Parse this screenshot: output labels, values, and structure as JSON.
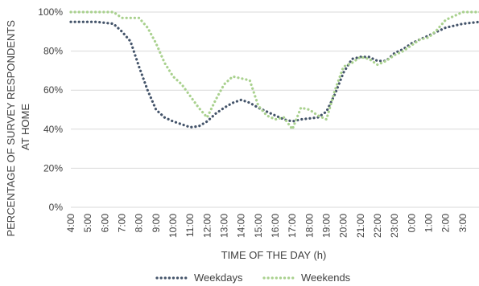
{
  "chart_data": {
    "type": "line",
    "xlabel": "TIME OF THE DAY (h)",
    "ylabel_lines": [
      "PERCENTAGE OF SURVEY RESPONDENTS",
      "AT HOME"
    ],
    "ylim": [
      0,
      100
    ],
    "yticks": [
      0,
      20,
      40,
      60,
      80,
      100
    ],
    "ytick_labels": [
      "0%",
      "20%",
      "40%",
      "60%",
      "80%",
      "100%"
    ],
    "xlim": [
      4,
      28
    ],
    "xticks": [
      4,
      5,
      6,
      7,
      8,
      9,
      10,
      11,
      12,
      13,
      14,
      15,
      16,
      17,
      18,
      19,
      20,
      21,
      22,
      23,
      24,
      25,
      26,
      27
    ],
    "xtick_labels": [
      "4:00",
      "5:00",
      "6:00",
      "7:00",
      "8:00",
      "9:00",
      "10:00",
      "11:00",
      "12:00",
      "13:00",
      "14:00",
      "15:00",
      "16:00",
      "17:00",
      "18:00",
      "19:00",
      "20:00",
      "21:00",
      "22:00",
      "23:00",
      "0:00",
      "1:00",
      "2:00",
      "3:00"
    ],
    "legend_position": "bottom",
    "grid": "horizontal",
    "series": [
      {
        "name": "Weekdays",
        "color": "#44546a",
        "x": [
          4,
          4.5,
          5,
          5.5,
          6,
          6.5,
          7,
          7.5,
          8,
          8.5,
          9,
          9.5,
          10,
          10.5,
          11,
          11.5,
          12,
          12.5,
          13,
          13.5,
          14,
          14.5,
          15,
          15.5,
          16,
          16.5,
          17,
          17.5,
          18,
          18.5,
          19,
          19.5,
          20,
          20.5,
          21,
          21.5,
          22,
          22.5,
          23,
          23.5,
          24,
          24.5,
          25,
          25.5,
          26,
          26.5,
          27,
          27.5,
          28
        ],
        "values": [
          95,
          95,
          95,
          95,
          94.5,
          94,
          90,
          85,
          72,
          60,
          50,
          46,
          44,
          42.5,
          41,
          41.5,
          44,
          48,
          51,
          53.5,
          55,
          53.5,
          51,
          49,
          47,
          45,
          44,
          45,
          45.5,
          46,
          49,
          58,
          69,
          76,
          77,
          77,
          75,
          75,
          79,
          81,
          84,
          86,
          88,
          90,
          92,
          93,
          94,
          94.5,
          95
        ]
      },
      {
        "name": "Weekends",
        "color": "#a9d18e",
        "x": [
          4,
          4.5,
          5,
          5.5,
          6,
          6.5,
          7,
          7.5,
          8,
          8.5,
          9,
          9.5,
          10,
          10.5,
          11,
          11.5,
          12,
          12.5,
          13,
          13.5,
          14,
          14.5,
          15,
          15.5,
          16,
          16.5,
          17,
          17.5,
          18,
          18.5,
          19,
          19.5,
          20,
          20.5,
          21,
          21.5,
          22,
          22.5,
          23,
          23.5,
          24,
          24.5,
          25,
          25.5,
          26,
          26.5,
          27,
          27.5,
          28
        ],
        "values": [
          100,
          100,
          100,
          100,
          100,
          100,
          97,
          97,
          97,
          92,
          84,
          74,
          67,
          63,
          57,
          51,
          46,
          55,
          63,
          67,
          66,
          65,
          52,
          47,
          45,
          46,
          40,
          51,
          50,
          47,
          45,
          60,
          72,
          74,
          77,
          76,
          73,
          75,
          78,
          80,
          83,
          86,
          87,
          91,
          96,
          98,
          100,
          100,
          100
        ]
      }
    ]
  }
}
